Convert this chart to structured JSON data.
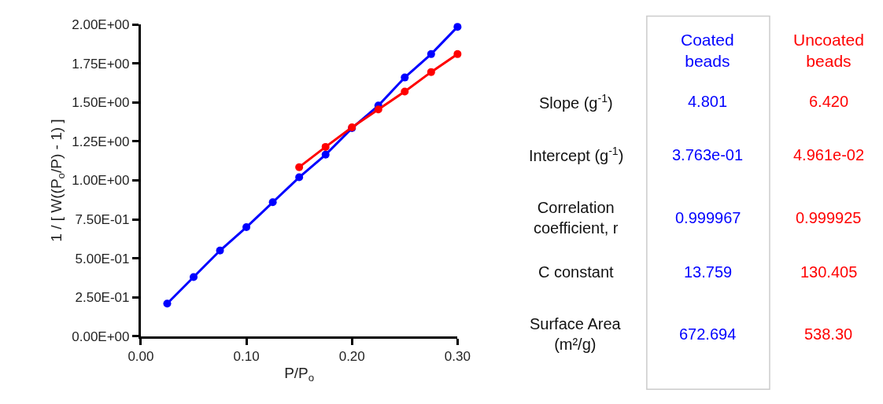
{
  "chart_data": [
    {
      "type": "line",
      "xlabel": "P/P$_{o}$",
      "ylabel": "1 / [ W((P$_{o}$/P) - 1) ]",
      "xlim": [
        0,
        0.3
      ],
      "xticks": [
        {
          "value": 0,
          "label": "0.00"
        },
        {
          "value": 0.1,
          "label": "0.10"
        },
        {
          "value": 0.2,
          "label": "0.20"
        },
        {
          "value": 0.3,
          "label": "0.30"
        }
      ],
      "ylim": [
        0,
        2
      ],
      "yticks": [
        {
          "value": 0,
          "label": "0.00E+00"
        },
        {
          "value": 0.25,
          "label": "2.50E-01"
        },
        {
          "value": 0.5,
          "label": "5.00E-01"
        },
        {
          "value": 0.75,
          "label": "7.50E-01"
        },
        {
          "value": 1,
          "label": "1.00E+00"
        },
        {
          "value": 1.25,
          "label": "1.25E+00"
        },
        {
          "value": 1.5,
          "label": "1.50E+00"
        },
        {
          "value": 1.75,
          "label": "1.75E+00"
        },
        {
          "value": 2,
          "label": "2.00E+00"
        }
      ],
      "marker": "circle",
      "line_style": "solid",
      "series": [
        {
          "color": "#0000ff",
          "x": [
            0.025,
            0.05,
            0.075,
            0.1,
            0.125,
            0.15,
            0.175,
            0.2,
            0.225,
            0.25,
            0.275,
            0.3
          ],
          "values": [
            0.21,
            0.38,
            0.55,
            0.7,
            0.86,
            1.02,
            1.165,
            1.335,
            1.48,
            1.66,
            1.81,
            1.985
          ]
        },
        {
          "color": "#ff0000",
          "x": [
            0.15,
            0.175,
            0.2,
            0.225,
            0.25,
            0.275,
            0.3
          ],
          "values": [
            1.085,
            1.215,
            1.34,
            1.455,
            1.57,
            1.695,
            1.81
          ]
        }
      ]
    },
    {
      "type": "other",
      "categories": [
        "Slope (g$^{-1}$)",
        "Intercept (g$^{-1}$)",
        "Correlation coefficient, r",
        "C constant",
        "Surface Area (m²/g)"
      ],
      "series": [
        {
          "name": "Coated beads",
          "color": "#0000ff",
          "values": [
            4.801,
            0.3763,
            0.999967,
            13.759,
            672.694
          ],
          "value_labels": [
            "4.801",
            "3.763e-01",
            "0.999967",
            "13.759",
            "672.694"
          ]
        },
        {
          "name": "Uncoated beads",
          "color": "#ff0000",
          "values": [
            6.42,
            0.04961,
            0.999925,
            130.405,
            538.3
          ],
          "value_labels": [
            "6.420",
            "4.961e-02",
            "0.999925",
            "130.405",
            "538.30"
          ]
        }
      ]
    }
  ]
}
